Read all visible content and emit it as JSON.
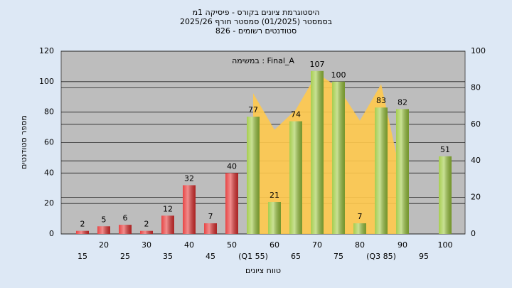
{
  "chart_data": {
    "type": "bar",
    "title": [
      "היסטוגרמת ציונים בקורס - פיסיקה 1מ",
      "בסמסטר  (01/2025)  סמסטר חורף 2025/26",
      "826 - סטודנטים רשומים"
    ],
    "annotation": "במשימה : Final_A",
    "y_label": "מספר סטודנטים",
    "x_label": "טווח ציונים",
    "categories": [
      "15",
      "20",
      "25",
      "30",
      "35",
      "40",
      "45",
      "50",
      "(Q1 55)",
      "60",
      "65",
      "70",
      "75",
      "80",
      "(Q3 85)",
      "90",
      "95",
      "100"
    ],
    "values": [
      2,
      5,
      6,
      2,
      12,
      32,
      7,
      40,
      77,
      21,
      74,
      107,
      100,
      7,
      83,
      82,
      null,
      51
    ],
    "colors": [
      "#e53030",
      "#e53030",
      "#e53030",
      "#e53030",
      "#e53030",
      "#e53030",
      "#e53030",
      "#e53030",
      "#9cc83c",
      "#9cc83c",
      "#9cc83c",
      "#9cc83c",
      "#9cc83c",
      "#9cc83c",
      "#9cc83c",
      "#9cc83c",
      "#9cc83c",
      "#9cc83c"
    ],
    "area": {
      "axis": "y2",
      "color": "#ffc94d",
      "values": [
        null,
        null,
        null,
        null,
        null,
        null,
        null,
        null,
        77,
        57,
        68,
        88,
        80,
        62,
        82,
        28,
        null,
        null
      ]
    },
    "ylim": [
      0,
      120
    ],
    "yticks": [
      0,
      20,
      40,
      60,
      80,
      100,
      120
    ],
    "y2lim": [
      0,
      100
    ],
    "y2ticks": [
      0,
      20,
      40,
      60,
      80,
      100
    ],
    "grid": true
  }
}
